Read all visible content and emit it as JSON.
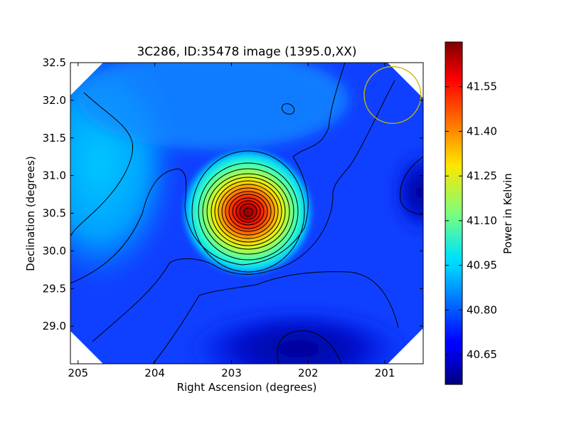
{
  "chart_data": {
    "type": "heatmap",
    "title": "3C286, ID:35478 image (1395.0,XX)",
    "xlabel": "Right Ascension (degrees)",
    "ylabel": "Declination (degrees)",
    "xlim": [
      205.1,
      200.5
    ],
    "ylim": [
      28.5,
      32.5
    ],
    "x_ticks": [
      "205",
      "204",
      "203",
      "202",
      "201"
    ],
    "y_ticks": [
      "29.0",
      "29.5",
      "30.0",
      "30.5",
      "31.0",
      "31.5",
      "32.0",
      "32.5"
    ],
    "colorbar": {
      "label": "Power in Kelvin",
      "range": [
        40.55,
        41.7
      ],
      "ticks": [
        "40.65",
        "40.80",
        "40.95",
        "41.10",
        "41.25",
        "41.40",
        "41.55"
      ],
      "colormap": "jet"
    },
    "peak": {
      "ra": 202.78,
      "dec": 30.52,
      "value": 41.68
    },
    "beam_circle": {
      "ra": 200.9,
      "dec": 32.07,
      "radius_deg": 0.37,
      "color": "#c8b800"
    },
    "grid": false,
    "legend": "none"
  }
}
